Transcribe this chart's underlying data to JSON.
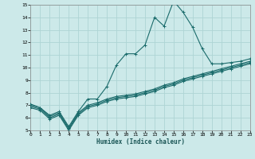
{
  "xlabel": "Humidex (Indice chaleur)",
  "ylabel": "",
  "bg_color": "#cce9e9",
  "grid_color": "#aed4d4",
  "line_color": "#1a6b6b",
  "xlim": [
    0,
    23
  ],
  "ylim": [
    5,
    15
  ],
  "xticks": [
    0,
    1,
    2,
    3,
    4,
    5,
    6,
    7,
    8,
    9,
    10,
    11,
    12,
    13,
    14,
    15,
    16,
    17,
    18,
    19,
    20,
    21,
    22,
    23
  ],
  "yticks": [
    5,
    6,
    7,
    8,
    9,
    10,
    11,
    12,
    13,
    14,
    15
  ],
  "line1_x": [
    0,
    1,
    2,
    3,
    4,
    5,
    6,
    7,
    8,
    9,
    10,
    11,
    12,
    13,
    14,
    15,
    16,
    17,
    18,
    19,
    20,
    21,
    22,
    23
  ],
  "line1_y": [
    7.1,
    6.8,
    6.2,
    6.5,
    5.3,
    6.5,
    7.5,
    7.5,
    8.5,
    10.2,
    11.1,
    11.1,
    11.8,
    14.0,
    13.3,
    15.3,
    14.4,
    13.2,
    11.5,
    10.3,
    10.3,
    10.4,
    10.5,
    10.7
  ],
  "line2_x": [
    0,
    1,
    2,
    3,
    4,
    5,
    6,
    7,
    8,
    9,
    10,
    11,
    12,
    13,
    14,
    15,
    16,
    17,
    18,
    19,
    20,
    21,
    22,
    23
  ],
  "line2_y": [
    7.0,
    6.8,
    6.1,
    6.4,
    5.2,
    6.4,
    7.0,
    7.2,
    7.5,
    7.7,
    7.8,
    7.9,
    8.1,
    8.3,
    8.6,
    8.8,
    9.1,
    9.3,
    9.5,
    9.7,
    9.9,
    10.1,
    10.3,
    10.5
  ],
  "line3_x": [
    0,
    1,
    2,
    3,
    4,
    5,
    6,
    7,
    8,
    9,
    10,
    11,
    12,
    13,
    14,
    15,
    16,
    17,
    18,
    19,
    20,
    21,
    22,
    23
  ],
  "line3_y": [
    6.9,
    6.7,
    6.0,
    6.3,
    5.1,
    6.3,
    6.9,
    7.1,
    7.4,
    7.6,
    7.7,
    7.8,
    8.0,
    8.2,
    8.5,
    8.7,
    9.0,
    9.2,
    9.4,
    9.6,
    9.8,
    10.0,
    10.2,
    10.4
  ],
  "line4_x": [
    0,
    1,
    2,
    3,
    4,
    5,
    6,
    7,
    8,
    9,
    10,
    11,
    12,
    13,
    14,
    15,
    16,
    17,
    18,
    19,
    20,
    21,
    22,
    23
  ],
  "line4_y": [
    6.8,
    6.6,
    5.9,
    6.2,
    5.0,
    6.2,
    6.8,
    7.0,
    7.3,
    7.5,
    7.6,
    7.7,
    7.9,
    8.1,
    8.4,
    8.6,
    8.9,
    9.1,
    9.3,
    9.5,
    9.7,
    9.9,
    10.1,
    10.3
  ]
}
